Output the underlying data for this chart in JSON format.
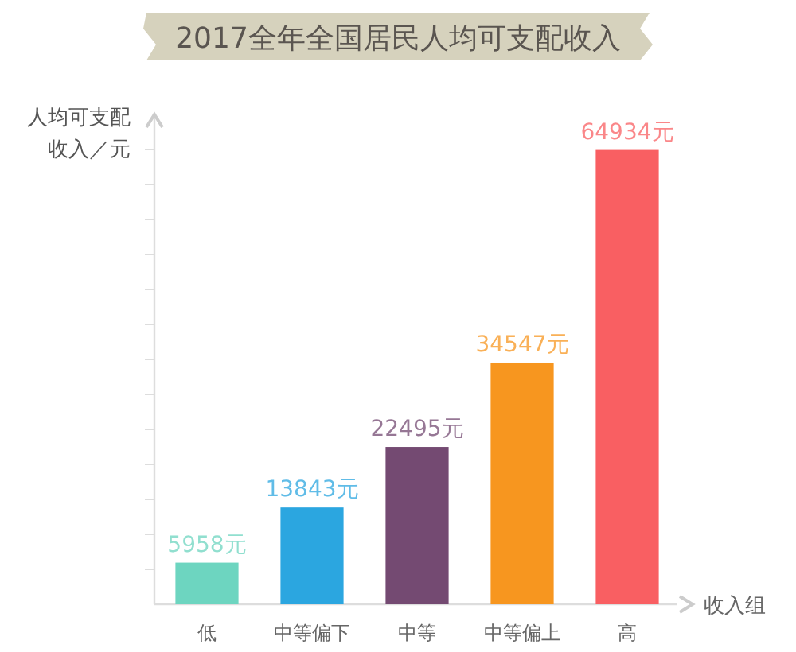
{
  "chart_data": {
    "type": "bar",
    "title": "2017全年全国居民人均可支配收入",
    "ylabel": "人均可支配收入／元",
    "xlabel": "收入组",
    "categories": [
      "低",
      "中等偏下",
      "中等",
      "中等偏上",
      "高"
    ],
    "values": [
      5958,
      13843,
      22495,
      34547,
      64934
    ],
    "colors": [
      "#6dd5c0",
      "#2ba6e0",
      "#744a72",
      "#f7961f",
      "#f95f62"
    ],
    "value_labels": [
      "5958元",
      "13843元",
      "22495元",
      "34547元",
      "64934元"
    ],
    "ylim": [
      0,
      70000
    ],
    "yticks": [
      {
        "value": 5000,
        "label": null
      },
      {
        "value": 10000,
        "label": null
      },
      {
        "value": 15000,
        "label": null
      },
      {
        "value": 20000,
        "label": null
      },
      {
        "value": 25000,
        "label": null
      },
      {
        "value": 30000,
        "label": null
      },
      {
        "value": 35000,
        "label": null
      },
      {
        "value": 40000,
        "label": null
      },
      {
        "value": 45000,
        "label": null
      },
      {
        "value": 50000,
        "label": null
      },
      {
        "value": 55000,
        "label": null
      },
      {
        "value": 60000,
        "label": null
      },
      {
        "value": 65000,
        "label": null
      }
    ],
    "tick_labels": "x"
  }
}
